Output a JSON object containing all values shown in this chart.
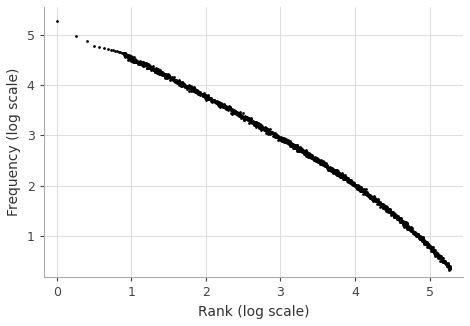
{
  "title": "",
  "xlabel": "Rank (log scale)",
  "ylabel": "Frequency (log scale)",
  "background_color": "#FFFFFF",
  "grid_color": "#DDDDDD",
  "dot_color": "#000000",
  "dot_size": 4,
  "xlim": [
    -0.18,
    5.45
  ],
  "ylim": [
    0.18,
    5.55
  ],
  "xticks": [
    0,
    1,
    2,
    3,
    4,
    5
  ],
  "yticks": [
    1,
    2,
    3,
    4,
    5
  ],
  "n_points": 1500,
  "early_x": [
    0.0,
    0.26,
    0.4,
    0.5,
    0.57,
    0.63,
    0.68,
    0.72,
    0.75,
    0.78,
    0.8,
    0.83,
    0.85,
    0.87,
    0.89
  ],
  "early_y": [
    5.28,
    4.97,
    4.88,
    4.78,
    4.75,
    4.73,
    4.71,
    4.7,
    4.69,
    4.68,
    4.67,
    4.66,
    4.65,
    4.64,
    4.63
  ]
}
